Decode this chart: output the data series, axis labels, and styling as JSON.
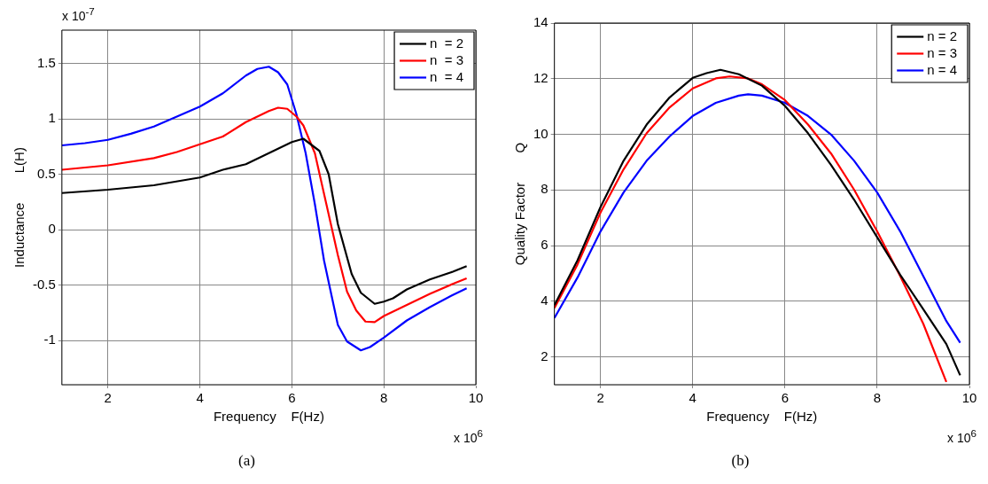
{
  "chart_data": [
    {
      "type": "line",
      "xlabel": "Frequency    F(Hz)",
      "ylabel": "Inductance        L(H)",
      "xlim": [
        1,
        10
      ],
      "xticks": [
        2,
        4,
        6,
        8,
        10
      ],
      "ylim": [
        -1.4,
        1.8
      ],
      "yticks": [
        -1,
        -0.5,
        0,
        0.5,
        1,
        1.5
      ],
      "grid": true,
      "legend": "top right",
      "marker": "none",
      "line_style": "solid",
      "annotations": [
        "x 10$^{-7}$",
        "x 10$^{6}$",
        "(a)"
      ],
      "x": [
        1,
        2,
        3,
        4,
        4.5,
        5,
        5.5,
        6,
        6.25,
        6.6,
        6.8,
        7,
        7.3,
        7.5,
        7.8,
        8,
        8.2,
        8.5,
        9,
        9.5,
        9.8
      ],
      "series": [
        {
          "name": "n  = 2",
          "color": "#000000",
          "values": [
            0.33,
            0.36,
            0.4,
            0.47,
            0.54,
            0.59,
            0.69,
            0.79,
            0.82,
            0.71,
            0.5,
            0.05,
            -0.4,
            -0.57,
            -0.67,
            -0.65,
            -0.62,
            -0.54,
            -0.45,
            -0.38,
            -0.33
          ]
        },
        {
          "name": "n  = 3",
          "color": "#ff0000",
          "x": [
            1,
            2,
            3,
            3.5,
            4,
            4.5,
            5,
            5.5,
            5.7,
            5.9,
            6.1,
            6.25,
            6.5,
            6.75,
            7,
            7.2,
            7.4,
            7.6,
            7.8,
            8,
            8.5,
            9,
            9.5,
            9.8
          ],
          "values": [
            0.54,
            0.58,
            0.645,
            0.7,
            0.77,
            0.84,
            0.97,
            1.07,
            1.1,
            1.09,
            1.02,
            0.94,
            0.69,
            0.23,
            -0.23,
            -0.56,
            -0.73,
            -0.83,
            -0.835,
            -0.78,
            -0.68,
            -0.58,
            -0.49,
            -0.44
          ]
        },
        {
          "name": "n  = 4",
          "color": "#0000ff",
          "x": [
            1,
            1.5,
            2,
            2.5,
            3,
            3.5,
            4,
            4.5,
            5,
            5.25,
            5.5,
            5.7,
            5.9,
            6.1,
            6.3,
            6.5,
            6.7,
            7,
            7.2,
            7.5,
            7.7,
            8,
            8.5,
            9,
            9.5,
            9.8
          ],
          "values": [
            0.76,
            0.78,
            0.81,
            0.865,
            0.93,
            1.02,
            1.11,
            1.23,
            1.39,
            1.45,
            1.47,
            1.42,
            1.31,
            1.04,
            0.69,
            0.23,
            -0.28,
            -0.86,
            -1.01,
            -1.09,
            -1.06,
            -0.975,
            -0.82,
            -0.7,
            -0.59,
            -0.53
          ]
        }
      ]
    },
    {
      "type": "line",
      "xlabel": "Frequency    F(Hz)",
      "ylabel": "Quality Factor        Q",
      "xlim": [
        1,
        10
      ],
      "xticks": [
        2,
        4,
        6,
        8,
        10
      ],
      "ylim": [
        1,
        14
      ],
      "yticks": [
        2,
        4,
        6,
        8,
        10,
        12,
        14
      ],
      "grid": true,
      "legend": "top right",
      "marker": "none",
      "line_style": "solid",
      "annotations": [
        "x 10$^{6}$",
        "(b)"
      ],
      "x": [
        1,
        1.5,
        2,
        2.5,
        3,
        3.5,
        4,
        4.3,
        4.6,
        5,
        5.5,
        6,
        6.5,
        7,
        7.5,
        8,
        8.5,
        9,
        9.5,
        9.8
      ],
      "series": [
        {
          "name": "n = 2",
          "color": "#000000",
          "values": [
            3.86,
            5.47,
            7.39,
            9.05,
            10.35,
            11.33,
            12.03,
            12.2,
            12.32,
            12.16,
            11.75,
            11.02,
            10.04,
            8.9,
            7.65,
            6.3,
            4.95,
            3.71,
            2.46,
            1.34
          ]
        },
        {
          "name": "n = 3",
          "color": "#ff0000",
          "x": [
            1,
            1.5,
            2,
            2.5,
            3,
            3.5,
            4,
            4.5,
            4.8,
            5.2,
            5.5,
            6,
            6.5,
            7,
            7.5,
            8,
            8.5,
            9,
            9.5
          ],
          "values": [
            3.76,
            5.32,
            7.19,
            8.74,
            10.04,
            10.97,
            11.65,
            12.01,
            12.08,
            12.01,
            11.8,
            11.23,
            10.35,
            9.31,
            8.01,
            6.51,
            4.9,
            3.19,
            1.1
          ]
        },
        {
          "name": "n = 4",
          "color": "#0000ff",
          "x": [
            1,
            1.5,
            2,
            2.5,
            3,
            3.5,
            4,
            4.5,
            5,
            5.2,
            5.5,
            6,
            6.5,
            7,
            7.5,
            8,
            8.5,
            9,
            9.5,
            9.8
          ],
          "values": [
            3.4,
            4.85,
            6.51,
            7.91,
            9.05,
            9.93,
            10.66,
            11.13,
            11.39,
            11.44,
            11.39,
            11.13,
            10.66,
            9.99,
            9.05,
            7.91,
            6.51,
            4.9,
            3.29,
            2.51
          ]
        }
      ]
    }
  ]
}
